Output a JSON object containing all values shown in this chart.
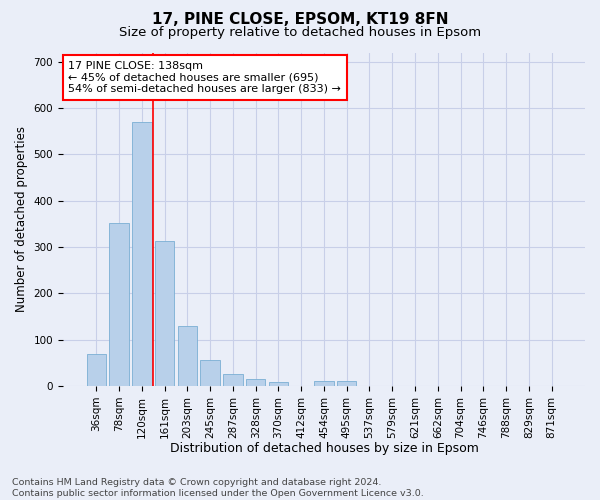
{
  "title1": "17, PINE CLOSE, EPSOM, KT19 8FN",
  "title2": "Size of property relative to detached houses in Epsom",
  "xlabel": "Distribution of detached houses by size in Epsom",
  "ylabel": "Number of detached properties",
  "footer1": "Contains HM Land Registry data © Crown copyright and database right 2024.",
  "footer2": "Contains public sector information licensed under the Open Government Licence v3.0.",
  "annotation_line1": "17 PINE CLOSE: 138sqm",
  "annotation_line2": "← 45% of detached houses are smaller (695)",
  "annotation_line3": "54% of semi-detached houses are larger (833) →",
  "bar_categories": [
    "36sqm",
    "78sqm",
    "120sqm",
    "161sqm",
    "203sqm",
    "245sqm",
    "287sqm",
    "328sqm",
    "370sqm",
    "412sqm",
    "454sqm",
    "495sqm",
    "537sqm",
    "579sqm",
    "621sqm",
    "662sqm",
    "704sqm",
    "746sqm",
    "788sqm",
    "829sqm",
    "871sqm"
  ],
  "bar_values": [
    68,
    352,
    570,
    313,
    130,
    57,
    25,
    15,
    8,
    0,
    10,
    10,
    0,
    0,
    0,
    0,
    0,
    0,
    0,
    0,
    0
  ],
  "bar_color": "#b8d0ea",
  "bar_edge_color": "#7aafd4",
  "vline_x_index": 2,
  "vline_color": "red",
  "ylim": [
    0,
    720
  ],
  "yticks": [
    0,
    100,
    200,
    300,
    400,
    500,
    600,
    700
  ],
  "annotation_box_color": "white",
  "annotation_box_edge_color": "red",
  "bg_color": "#eaeef8",
  "grid_color": "#c8cfe8",
  "title1_fontsize": 11,
  "title2_fontsize": 9.5,
  "xlabel_fontsize": 9,
  "ylabel_fontsize": 8.5,
  "tick_fontsize": 7.5,
  "annotation_fontsize": 8,
  "footer_fontsize": 6.8
}
